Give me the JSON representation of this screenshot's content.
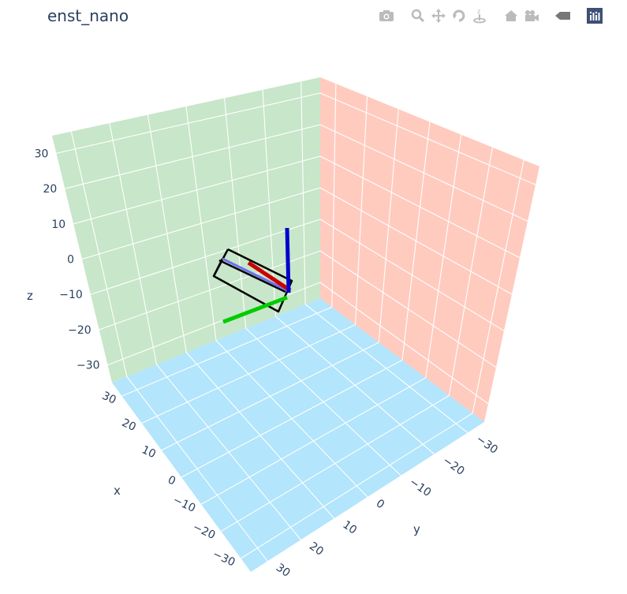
{
  "title": "enst_nano",
  "modebar": [
    {
      "icon": "camera-icon",
      "name": "download-plot-button"
    },
    {
      "icon": "zoom-icon",
      "name": "zoom-button"
    },
    {
      "icon": "pan-icon",
      "name": "pan-button"
    },
    {
      "icon": "orbit-rotation-icon",
      "name": "orbit-rotation-button"
    },
    {
      "icon": "turntable-rotation-icon",
      "name": "turntable-rotation-button"
    },
    {
      "icon": "home-icon",
      "name": "reset-camera-button"
    },
    {
      "icon": "camera-video-icon",
      "name": "save-camera-button"
    },
    {
      "icon": "hover-icon",
      "name": "toggle-hover-button"
    },
    {
      "icon": "plotly-logo-icon",
      "name": "plotly-logo-button"
    }
  ],
  "chart_data": {
    "type": "scatter3d",
    "title": "enst_nano",
    "xlabel": "x",
    "ylabel": "y",
    "zlabel": "z",
    "x_range": [
      -35,
      35
    ],
    "y_range": [
      -35,
      35
    ],
    "z_range": [
      -35,
      35
    ],
    "x_ticks": [
      "30",
      "20",
      "10",
      "0",
      "−10",
      "−20",
      "−30"
    ],
    "y_ticks": [
      "−30",
      "−20",
      "−10",
      "0",
      "10",
      "20",
      "30"
    ],
    "z_ticks": [
      "30",
      "20",
      "10",
      "0",
      "−10",
      "−20",
      "−30"
    ],
    "wall_colors": {
      "xz": "#c8e6c9",
      "yz": "#ffcbbf",
      "xy": "#b3e5fc"
    },
    "grid": true,
    "traces": [
      {
        "name": "box",
        "color": "#000000"
      },
      {
        "name": "x-axis",
        "color": "#cc0000"
      },
      {
        "name": "y-axis",
        "color": "#00cc00"
      },
      {
        "name": "z-axis",
        "color": "#0000cc"
      },
      {
        "name": "light-arrow",
        "color": "#7070ee"
      }
    ]
  }
}
